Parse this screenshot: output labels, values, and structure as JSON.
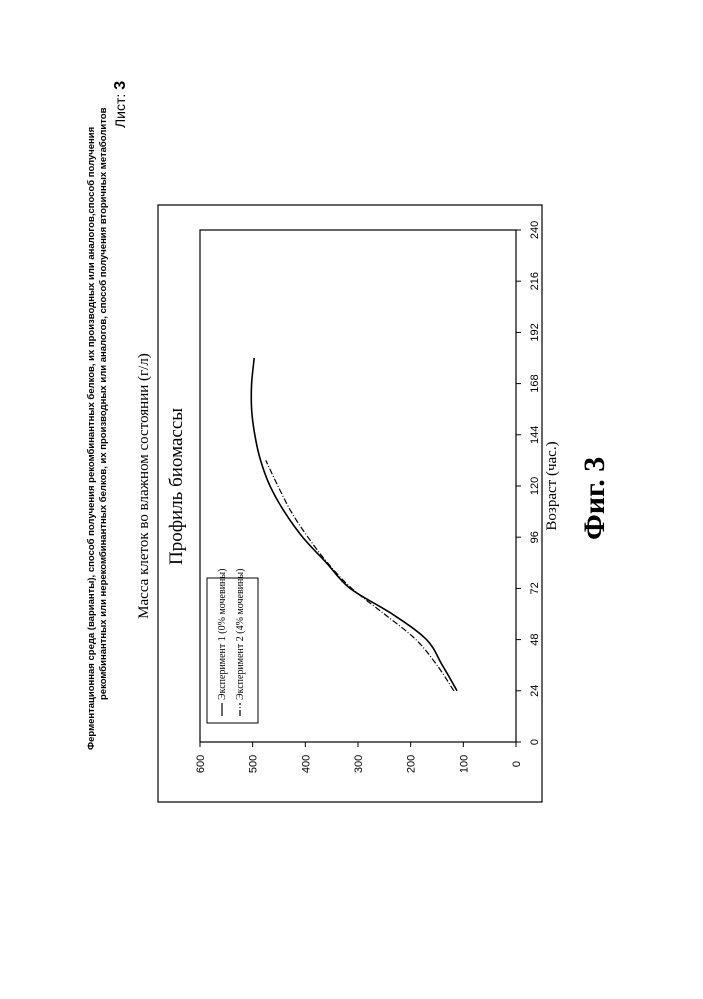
{
  "header": {
    "line1": "Ферментационная среда (варианты), способ получения рекомбинантных белков, их производных или аналогов,способ получения",
    "line2": "рекомбинантных или нерекомбинантных белков, их производных или аналогов, способ получения вторичных метаболитов",
    "sheet_label": "Лист:",
    "sheet_number": "3"
  },
  "figure_label": "Фиг. 3",
  "chart_data": {
    "type": "line",
    "title": "Профиль биомассы",
    "xlabel": "Возраст (час.)",
    "ylabel": "Масса клеток во влажном состоянии (г/л)",
    "xlim": [
      0,
      240
    ],
    "ylim": [
      0,
      600
    ],
    "xticks": [
      0,
      24,
      48,
      72,
      96,
      120,
      144,
      168,
      192,
      216,
      240
    ],
    "yticks": [
      0,
      100,
      200,
      300,
      400,
      500,
      600
    ],
    "grid": false,
    "legend_position": "bottom-left",
    "series": [
      {
        "name": "Эксперимент 1 (0% мочевины)",
        "style": "solid",
        "x": [
          24,
          36,
          48,
          60,
          72,
          84,
          96,
          108,
          120,
          132,
          144,
          156,
          168,
          180
        ],
        "y": [
          112,
          140,
          170,
          235,
          315,
          360,
          405,
          440,
          467,
          485,
          496,
          502,
          502,
          497
        ]
      },
      {
        "name": "Эксперимент 2 (4% мочевины)",
        "style": "dashdot",
        "x": [
          24,
          36,
          48,
          60,
          72,
          84,
          96,
          108,
          120,
          132
        ],
        "y": [
          118,
          150,
          190,
          250,
          312,
          358,
          395,
          427,
          452,
          475
        ]
      }
    ]
  }
}
